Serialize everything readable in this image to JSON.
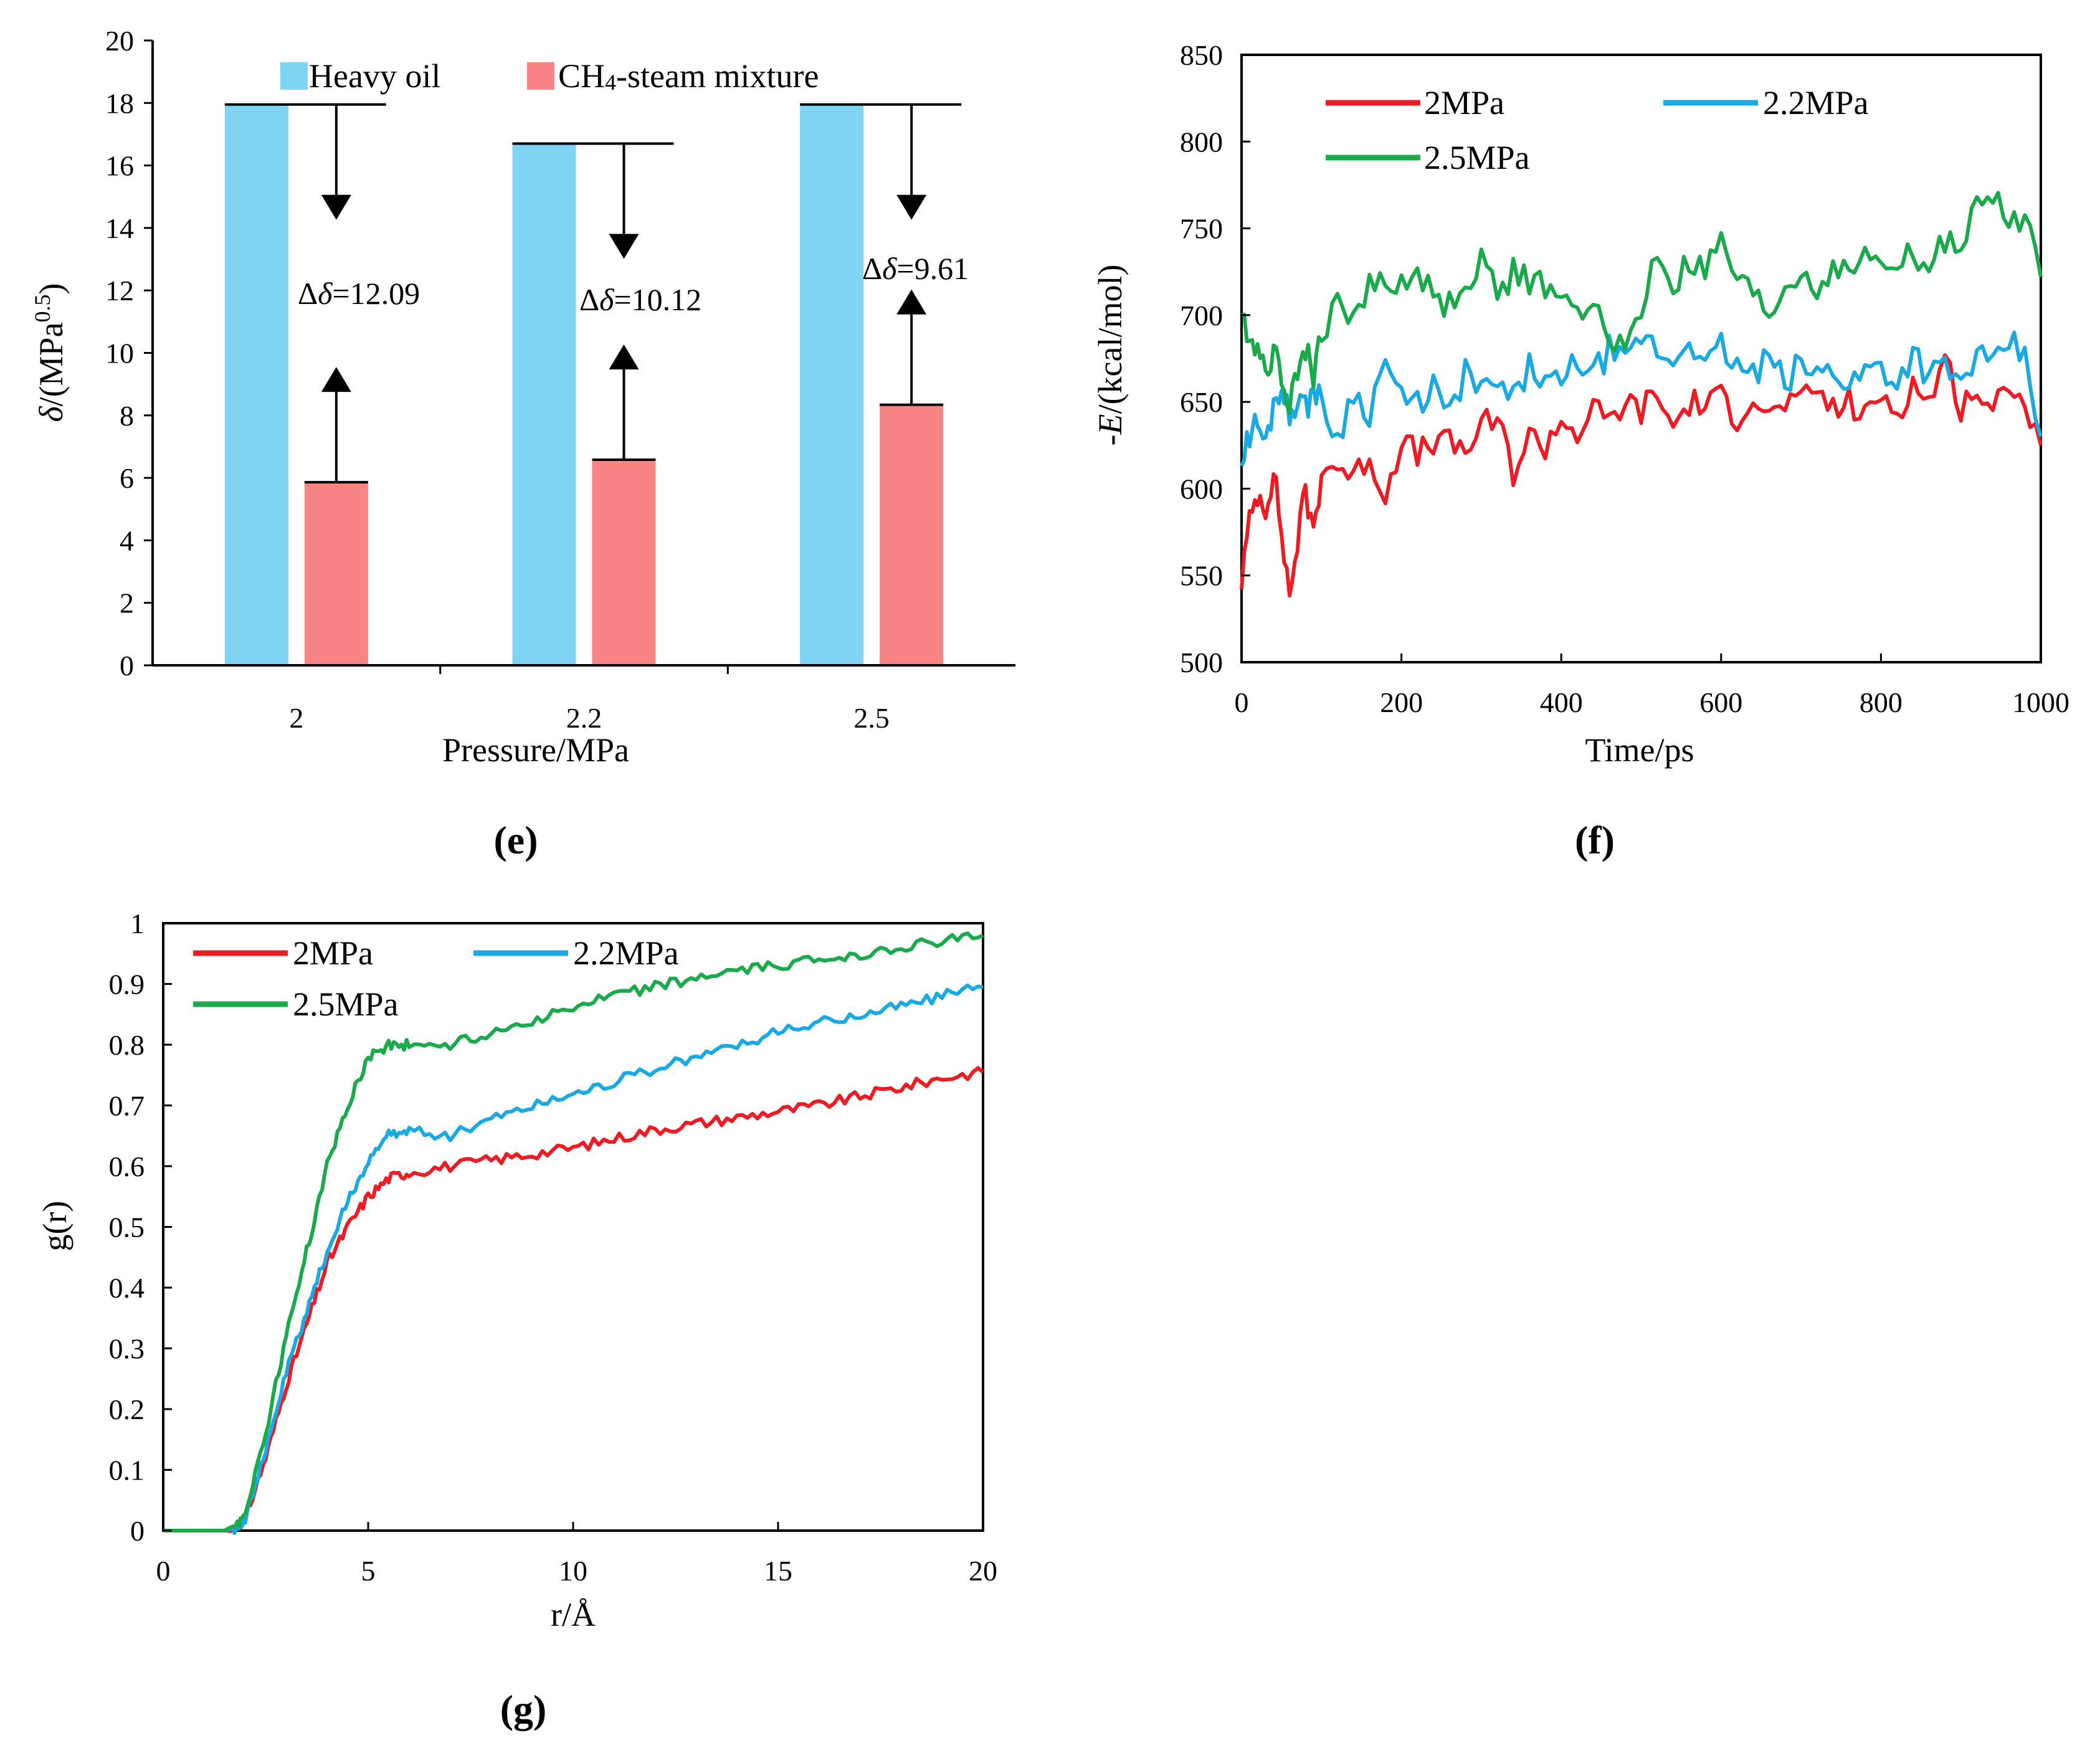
{
  "chart_data": [
    {
      "id": "e",
      "type": "bar",
      "panel_label": "e",
      "xlabel": "Pressure/MPa",
      "ylabel": "δ/(MPa^0.5)",
      "ylim": [
        0,
        20
      ],
      "yticks": [
        "0",
        "2",
        "4",
        "6",
        "8",
        "10",
        "12",
        "14",
        "16",
        "18",
        "20"
      ],
      "categories": [
        "2",
        "2.2",
        "2.5"
      ],
      "legend_position": "top",
      "series": [
        {
          "name": "Heavy oil",
          "color": "#7fd3f3",
          "values": [
            17.95,
            16.7,
            17.95
          ]
        },
        {
          "name": "CH4-steam mixture",
          "color": "#f88483",
          "values": [
            5.86,
            6.58,
            8.34
          ]
        }
      ],
      "annotations": [
        "Δδ=12.09",
        "Δδ=10.12",
        "Δδ=9.61"
      ],
      "annotation_prefix": "Δ",
      "annotation_symbol": "δ",
      "annotation_values": [
        "=12.09",
        "=10.12",
        "=9.61"
      ]
    },
    {
      "id": "f",
      "type": "line",
      "panel_label": "f",
      "xlabel": "Time/ps",
      "ylabel": "-E/(kcal/mol)",
      "xlim": [
        0,
        1000
      ],
      "ylim": [
        500,
        850
      ],
      "xticks": [
        "0",
        "200",
        "400",
        "600",
        "800",
        "1000"
      ],
      "yticks": [
        "500",
        "550",
        "600",
        "650",
        "700",
        "750",
        "800",
        "850"
      ],
      "legend_position": "top-left",
      "series": [
        {
          "name": "2MPa",
          "color": "#ec1c24",
          "x": [
            0,
            10,
            20,
            30,
            40,
            50,
            60,
            70,
            80,
            90,
            100,
            120,
            140,
            160,
            180,
            200,
            220,
            240,
            260,
            280,
            300,
            320,
            340,
            360,
            380,
            400,
            420,
            440,
            460,
            480,
            500,
            520,
            540,
            560,
            580,
            600,
            620,
            640,
            660,
            680,
            700,
            720,
            740,
            760,
            780,
            800,
            820,
            840,
            860,
            880,
            900,
            920,
            940,
            960,
            980,
            1000
          ],
          "y": [
            548,
            580,
            598,
            590,
            610,
            575,
            538,
            570,
            598,
            575,
            610,
            615,
            605,
            620,
            595,
            630,
            618,
            628,
            625,
            622,
            635,
            640,
            610,
            630,
            625,
            640,
            632,
            645,
            638,
            650,
            645,
            655,
            635,
            650,
            648,
            652,
            642,
            655,
            640,
            650,
            648,
            658,
            645,
            650,
            640,
            655,
            645,
            660,
            650,
            675,
            648,
            658,
            640,
            665,
            650,
            625
          ]
        },
        {
          "name": "2.2MPa",
          "color": "#1aa9e1",
          "x": [
            0,
            10,
            20,
            30,
            40,
            50,
            60,
            70,
            80,
            90,
            100,
            120,
            140,
            160,
            180,
            200,
            220,
            240,
            260,
            280,
            300,
            320,
            340,
            360,
            380,
            400,
            420,
            440,
            460,
            480,
            500,
            520,
            540,
            560,
            580,
            600,
            620,
            640,
            660,
            680,
            700,
            720,
            740,
            760,
            780,
            800,
            820,
            840,
            860,
            880,
            900,
            920,
            940,
            960,
            980,
            1000
          ],
          "y": [
            615,
            632,
            638,
            625,
            650,
            660,
            640,
            655,
            645,
            660,
            648,
            630,
            655,
            645,
            675,
            650,
            648,
            660,
            640,
            668,
            655,
            660,
            650,
            670,
            662,
            658,
            675,
            665,
            680,
            670,
            688,
            680,
            672,
            690,
            668,
            682,
            670,
            665,
            675,
            660,
            672,
            665,
            670,
            660,
            668,
            672,
            660,
            680,
            665,
            670,
            660,
            678,
            668,
            685,
            675,
            630
          ]
        },
        {
          "name": "2.5MPa",
          "color": "#1aaa4b",
          "x": [
            0,
            10,
            20,
            30,
            40,
            50,
            60,
            70,
            80,
            90,
            100,
            120,
            140,
            160,
            180,
            200,
            220,
            240,
            260,
            280,
            300,
            320,
            340,
            360,
            380,
            400,
            420,
            440,
            460,
            480,
            500,
            520,
            540,
            560,
            580,
            600,
            620,
            640,
            660,
            680,
            700,
            720,
            740,
            760,
            780,
            800,
            820,
            840,
            860,
            880,
            900,
            920,
            940,
            960,
            980,
            1000
          ],
          "y": [
            698,
            690,
            680,
            670,
            678,
            665,
            650,
            672,
            680,
            665,
            690,
            705,
            700,
            720,
            715,
            718,
            725,
            710,
            705,
            720,
            730,
            712,
            725,
            720,
            715,
            705,
            710,
            700,
            690,
            680,
            700,
            738,
            715,
            730,
            725,
            740,
            720,
            710,
            700,
            715,
            725,
            715,
            730,
            720,
            740,
            725,
            730,
            735,
            725,
            745,
            740,
            760,
            770,
            750,
            760,
            722
          ]
        },
        {
          "name": "",
          "color": "#1aa9e1",
          "x": [],
          "y": []
        }
      ]
    },
    {
      "id": "g",
      "type": "line",
      "panel_label": "g",
      "xlabel": "r/Å",
      "ylabel": "g(r)",
      "xlim": [
        0,
        20
      ],
      "ylim": [
        0,
        1
      ],
      "xticks": [
        "0",
        "5",
        "10",
        "15",
        "20"
      ],
      "yticks": [
        "0",
        "0.1",
        "0.2",
        "0.3",
        "0.4",
        "0.5",
        "0.6",
        "0.7",
        "0.8",
        "0.9",
        "1"
      ],
      "legend_position": "top-left",
      "series": [
        {
          "name": "2MPa",
          "color": "#ec1c24",
          "x": [
            0,
            1.7,
            2.0,
            2.5,
            3.0,
            3.5,
            4.0,
            4.5,
            5.0,
            5.5,
            6,
            7,
            8,
            9,
            10,
            11,
            12,
            13,
            14,
            15,
            16,
            17,
            18,
            19,
            20
          ],
          "y": [
            0,
            0,
            0.02,
            0.12,
            0.24,
            0.34,
            0.44,
            0.5,
            0.55,
            0.58,
            0.59,
            0.6,
            0.61,
            0.62,
            0.63,
            0.645,
            0.66,
            0.67,
            0.68,
            0.69,
            0.7,
            0.715,
            0.73,
            0.745,
            0.755
          ]
        },
        {
          "name": "2.2MPa",
          "color": "#1aa9e1",
          "x": [
            0,
            1.7,
            2.0,
            2.5,
            3.0,
            3.5,
            4.0,
            4.5,
            5.0,
            5.5,
            6,
            7,
            8,
            9,
            10,
            11,
            12,
            13,
            14,
            15,
            16,
            17,
            18,
            19,
            20
          ],
          "y": [
            0,
            0,
            0.02,
            0.13,
            0.26,
            0.36,
            0.46,
            0.54,
            0.61,
            0.65,
            0.66,
            0.65,
            0.68,
            0.7,
            0.72,
            0.74,
            0.76,
            0.78,
            0.8,
            0.82,
            0.835,
            0.85,
            0.865,
            0.88,
            0.895
          ]
        },
        {
          "name": "2.5MPa",
          "color": "#1aaa4b",
          "x": [
            0,
            1.7,
            2.0,
            2.5,
            3.0,
            3.5,
            4.0,
            4.5,
            5.0,
            5.5,
            6,
            7,
            8,
            9,
            10,
            11,
            12,
            13,
            14,
            15,
            16,
            17,
            18,
            19,
            20
          ],
          "y": [
            0,
            0,
            0.03,
            0.16,
            0.32,
            0.46,
            0.6,
            0.7,
            0.78,
            0.8,
            0.8,
            0.8,
            0.82,
            0.84,
            0.86,
            0.88,
            0.895,
            0.91,
            0.92,
            0.93,
            0.94,
            0.95,
            0.96,
            0.97,
            0.98
          ]
        }
      ]
    }
  ]
}
